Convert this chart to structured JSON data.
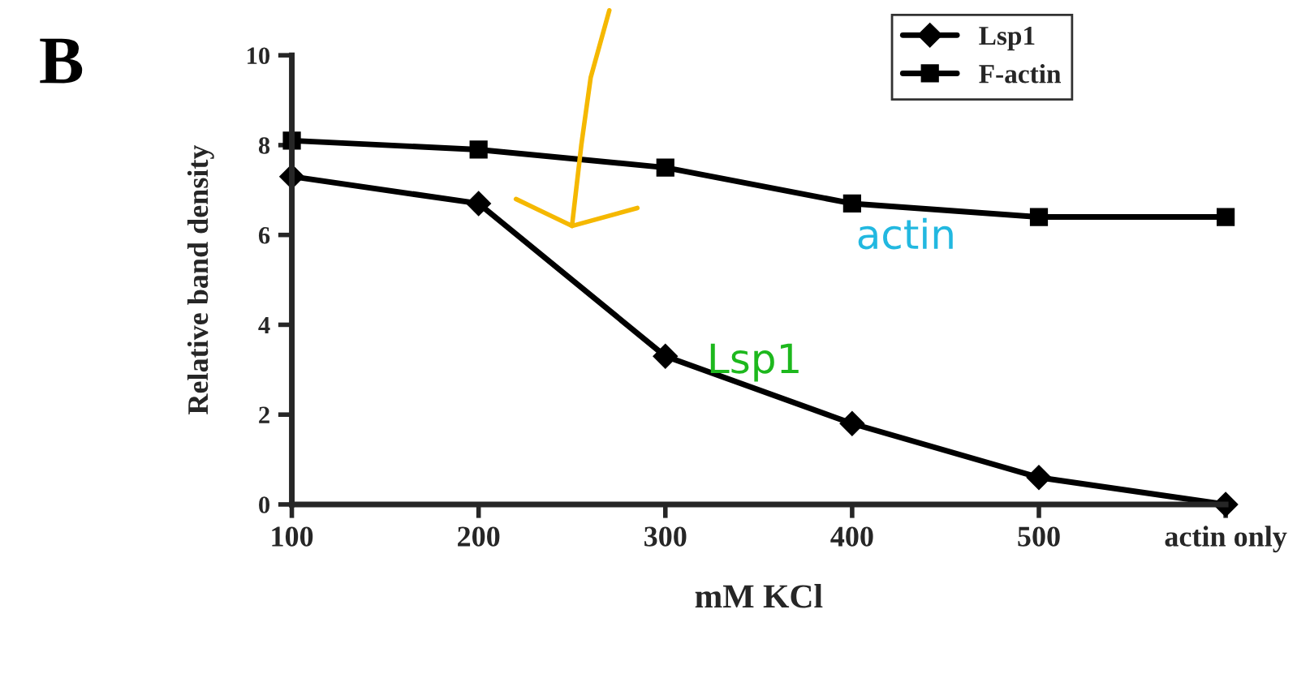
{
  "chart_data": {
    "type": "line",
    "xlabel": "mM KCl",
    "ylabel": "Relative band density",
    "categories": [
      "100",
      "200",
      "300",
      "400",
      "500",
      "actin only"
    ],
    "series": [
      {
        "name": "Lsp1",
        "color": "#000000",
        "marker": "diamond",
        "values": [
          7.3,
          6.7,
          3.3,
          1.8,
          0.6,
          0
        ]
      },
      {
        "name": "F-actin",
        "color": "#000000",
        "marker": "square",
        "values": [
          8.1,
          7.9,
          7.5,
          6.7,
          6.4,
          6.4
        ]
      }
    ],
    "ylim": [
      0,
      10
    ],
    "yticks": [
      0,
      2,
      4,
      6,
      8,
      10
    ],
    "grid": false,
    "legend": "top right",
    "line_style": "solid",
    "annotations": [
      "B",
      "actin",
      "Lsp1"
    ]
  }
}
